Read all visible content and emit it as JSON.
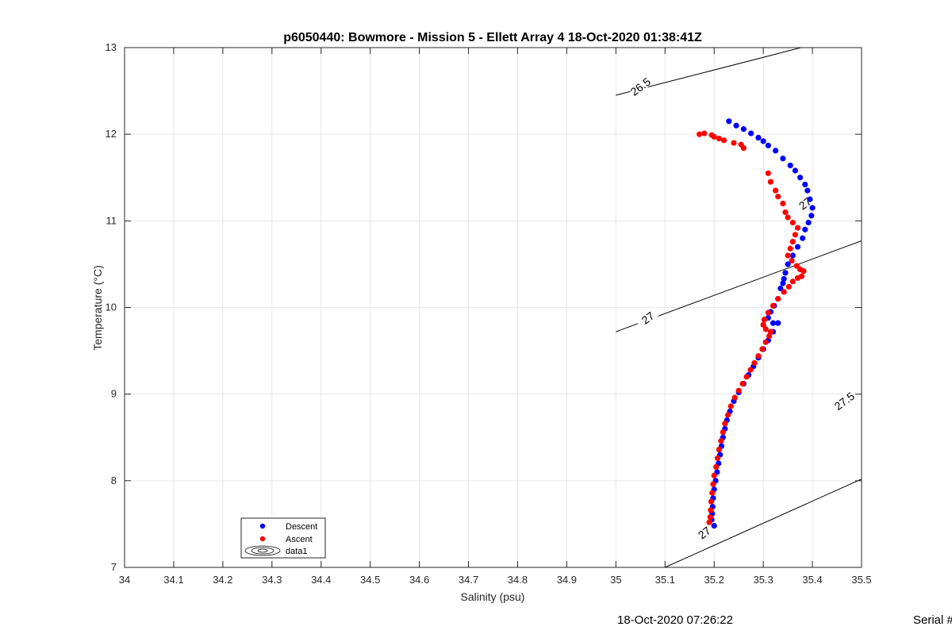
{
  "chart_data": {
    "type": "scatter",
    "title": "p6050440: Bowmore - Mission 5 - Ellett Array 4 18-Oct-2020 01:38:41Z",
    "xlabel": "Salinity (psu)",
    "ylabel": "Temperature (°C)",
    "xlim": [
      34,
      35.5
    ],
    "ylim": [
      7,
      13
    ],
    "grid": true,
    "x_ticks": [
      "34",
      "34.1",
      "34.2",
      "34.3",
      "34.4",
      "34.5",
      "34.6",
      "34.7",
      "34.8",
      "34.9",
      "35",
      "35.1",
      "35.2",
      "35.3",
      "35.4",
      "35.5"
    ],
    "y_ticks": [
      "7",
      "8",
      "9",
      "10",
      "11",
      "12",
      "13"
    ],
    "legend_position": "bottom-left",
    "legend": [
      "Descent",
      "Ascent",
      "data1"
    ],
    "series": [
      {
        "name": "Descent",
        "color": "#0000ff",
        "marker": "dot",
        "points": [
          [
            35.23,
            12.15
          ],
          [
            35.245,
            12.1
          ],
          [
            35.26,
            12.06
          ],
          [
            35.275,
            12.01
          ],
          [
            35.29,
            11.96
          ],
          [
            35.3,
            11.92
          ],
          [
            35.31,
            11.87
          ],
          [
            35.325,
            11.81
          ],
          [
            35.34,
            11.72
          ],
          [
            35.355,
            11.64
          ],
          [
            35.365,
            11.58
          ],
          [
            35.375,
            11.5
          ],
          [
            35.385,
            11.42
          ],
          [
            35.39,
            11.35
          ],
          [
            35.395,
            11.25
          ],
          [
            35.4,
            11.15
          ],
          [
            35.398,
            11.06
          ],
          [
            35.392,
            10.98
          ],
          [
            35.385,
            10.9
          ],
          [
            35.38,
            10.8
          ],
          [
            35.37,
            10.7
          ],
          [
            35.36,
            10.6
          ],
          [
            35.35,
            10.5
          ],
          [
            35.345,
            10.4
          ],
          [
            35.342,
            10.33
          ],
          [
            35.34,
            10.28
          ],
          [
            35.335,
            10.22
          ],
          [
            35.33,
            10.1
          ],
          [
            35.322,
            10.02
          ],
          [
            35.315,
            9.95
          ],
          [
            35.31,
            9.88
          ],
          [
            35.32,
            9.82
          ],
          [
            35.33,
            9.82
          ],
          [
            35.32,
            9.72
          ],
          [
            35.31,
            9.62
          ],
          [
            35.3,
            9.52
          ],
          [
            35.29,
            9.42
          ],
          [
            35.28,
            9.32
          ],
          [
            35.27,
            9.22
          ],
          [
            35.26,
            9.12
          ],
          [
            35.25,
            9.02
          ],
          [
            35.24,
            8.92
          ],
          [
            35.232,
            8.8
          ],
          [
            35.226,
            8.7
          ],
          [
            35.222,
            8.6
          ],
          [
            35.218,
            8.5
          ],
          [
            35.215,
            8.4
          ],
          [
            35.212,
            8.3
          ],
          [
            35.209,
            8.2
          ],
          [
            35.206,
            8.1
          ],
          [
            35.203,
            8.0
          ],
          [
            35.2,
            7.9
          ],
          [
            35.198,
            7.8
          ],
          [
            35.197,
            7.7
          ],
          [
            35.196,
            7.62
          ],
          [
            35.195,
            7.55
          ],
          [
            35.2,
            7.48
          ]
        ]
      },
      {
        "name": "Ascent",
        "color": "#ff0000",
        "marker": "dot",
        "points": [
          [
            35.17,
            12.0
          ],
          [
            35.18,
            12.01
          ],
          [
            35.195,
            11.99
          ],
          [
            35.2,
            11.97
          ],
          [
            35.21,
            11.95
          ],
          [
            35.22,
            11.93
          ],
          [
            35.24,
            11.9
          ],
          [
            35.255,
            11.88
          ],
          [
            35.26,
            11.84
          ],
          [
            35.31,
            11.55
          ],
          [
            35.315,
            11.45
          ],
          [
            35.325,
            11.35
          ],
          [
            35.33,
            11.28
          ],
          [
            35.34,
            11.2
          ],
          [
            35.345,
            11.1
          ],
          [
            35.35,
            11.04
          ],
          [
            35.36,
            10.98
          ],
          [
            35.37,
            10.92
          ],
          [
            35.365,
            10.84
          ],
          [
            35.36,
            10.76
          ],
          [
            35.355,
            10.68
          ],
          [
            35.35,
            10.6
          ],
          [
            35.358,
            10.54
          ],
          [
            35.368,
            10.48
          ],
          [
            35.375,
            10.44
          ],
          [
            35.382,
            10.42
          ],
          [
            35.378,
            10.36
          ],
          [
            35.37,
            10.34
          ],
          [
            35.36,
            10.3
          ],
          [
            35.352,
            10.24
          ],
          [
            35.342,
            10.18
          ],
          [
            35.33,
            10.1
          ],
          [
            35.32,
            10.02
          ],
          [
            35.31,
            9.94
          ],
          [
            35.302,
            9.86
          ],
          [
            35.3,
            9.8
          ],
          [
            35.305,
            9.75
          ],
          [
            35.315,
            9.72
          ],
          [
            35.312,
            9.67
          ],
          [
            35.305,
            9.6
          ],
          [
            35.298,
            9.52
          ],
          [
            35.29,
            9.44
          ],
          [
            35.282,
            9.36
          ],
          [
            35.274,
            9.28
          ],
          [
            35.266,
            9.2
          ],
          [
            35.258,
            9.12
          ],
          [
            35.25,
            9.04
          ],
          [
            35.242,
            8.96
          ],
          [
            35.234,
            8.86
          ],
          [
            35.228,
            8.76
          ],
          [
            35.222,
            8.66
          ],
          [
            35.218,
            8.56
          ],
          [
            35.214,
            8.46
          ],
          [
            35.21,
            8.36
          ],
          [
            35.207,
            8.26
          ],
          [
            35.204,
            8.16
          ],
          [
            35.2,
            8.06
          ],
          [
            35.198,
            7.96
          ],
          [
            35.196,
            7.86
          ],
          [
            35.194,
            7.76
          ],
          [
            35.193,
            7.66
          ],
          [
            35.192,
            7.58
          ],
          [
            35.19,
            7.52
          ]
        ]
      }
    ],
    "contours": [
      {
        "label": "26.5",
        "s0": 35.0,
        "t0": 12.45,
        "slope": 1.46
      },
      {
        "label": "27",
        "s0": 35.0,
        "t0": 9.72,
        "slope": 2.1
      },
      {
        "label": "27.5",
        "s0": 35.1,
        "t0": 7.0,
        "slope": 2.55
      },
      {
        "label": "27",
        "s0": 35.1,
        "t0": 7.0,
        "slope": 2.55
      }
    ],
    "contour_label_positions": [
      {
        "label": "26.5",
        "s": 35.05,
        "t": 12.55
      },
      {
        "label": "27",
        "s": 35.385,
        "t": 11.2
      },
      {
        "label": "27",
        "s": 35.065,
        "t": 9.88
      },
      {
        "label": "27.5",
        "s": 35.465,
        "t": 8.92
      },
      {
        "label": "27",
        "s": 35.18,
        "t": 7.4
      }
    ]
  },
  "footer": {
    "timestamp": "18-Oct-2020 07:26:22",
    "serial": "Serial #"
  }
}
